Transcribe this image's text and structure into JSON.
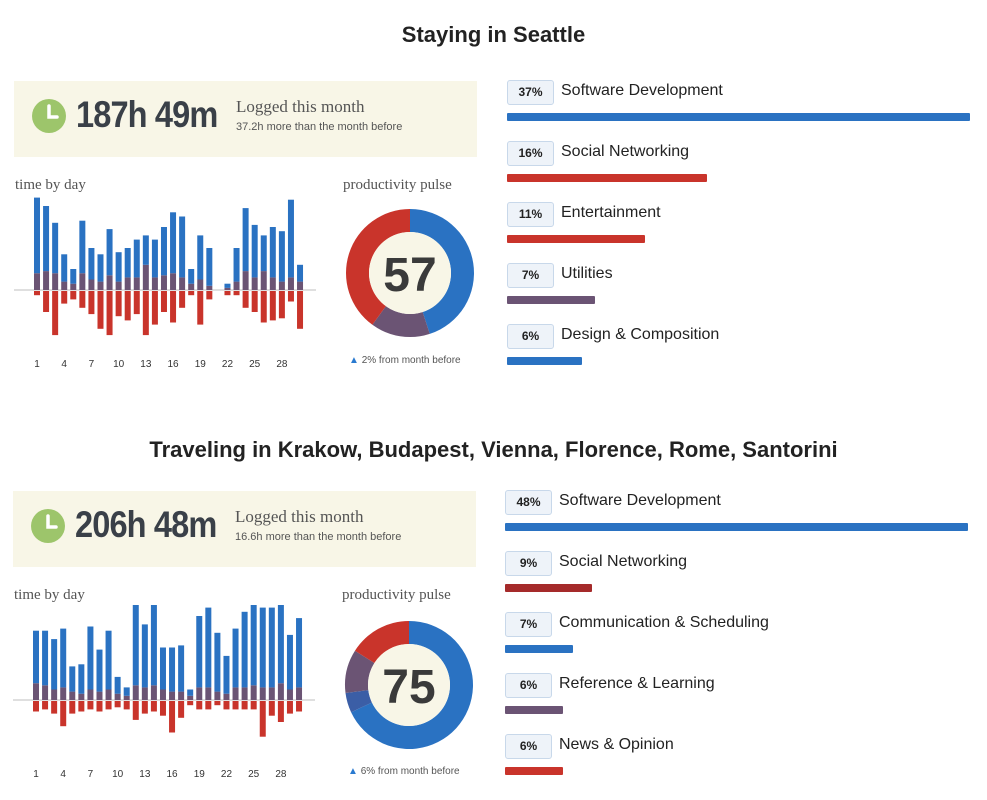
{
  "chart_data": [
    {
      "type": "bar",
      "title": "Staying in Seattle",
      "logged": {
        "hours": "187h 49m",
        "label": "Logged this month",
        "sub": "37.2h more than the month before"
      },
      "time_by_day": {
        "label": "time by day",
        "tick_labels": [
          "1",
          "4",
          "7",
          "10",
          "13",
          "16",
          "19",
          "22",
          "25",
          "28"
        ],
        "days": [
          {
            "blue": 3.6,
            "purple": 0.8,
            "red": 0.2
          },
          {
            "blue": 3.1,
            "purple": 0.9,
            "red": 1.0
          },
          {
            "blue": 2.4,
            "purple": 0.8,
            "red": 2.1
          },
          {
            "blue": 1.3,
            "purple": 0.4,
            "red": 0.6
          },
          {
            "blue": 0.7,
            "purple": 0.3,
            "red": 0.4
          },
          {
            "blue": 2.5,
            "purple": 0.8,
            "red": 0.8
          },
          {
            "blue": 1.5,
            "purple": 0.5,
            "red": 1.1
          },
          {
            "blue": 1.3,
            "purple": 0.4,
            "red": 1.8
          },
          {
            "blue": 2.2,
            "purple": 0.7,
            "red": 2.1
          },
          {
            "blue": 1.4,
            "purple": 0.4,
            "red": 1.2
          },
          {
            "blue": 1.4,
            "purple": 0.6,
            "red": 1.4
          },
          {
            "blue": 1.8,
            "purple": 0.6,
            "red": 1.1
          },
          {
            "blue": 1.4,
            "purple": 1.2,
            "red": 2.1
          },
          {
            "blue": 1.8,
            "purple": 0.6,
            "red": 1.6
          },
          {
            "blue": 2.3,
            "purple": 0.7,
            "red": 1.0
          },
          {
            "blue": 2.9,
            "purple": 0.8,
            "red": 1.5
          },
          {
            "blue": 2.9,
            "purple": 0.6,
            "red": 0.8
          },
          {
            "blue": 0.7,
            "purple": 0.3,
            "red": 0.2
          },
          {
            "blue": 2.1,
            "purple": 0.5,
            "red": 1.6
          },
          {
            "blue": 1.8,
            "purple": 0.2,
            "red": 0.4
          },
          {
            "blue": 0.0,
            "purple": 0.0,
            "red": 0.0
          },
          {
            "blue": 0.2,
            "purple": 0.1,
            "red": 0.2
          },
          {
            "blue": 1.6,
            "purple": 0.4,
            "red": 0.2
          },
          {
            "blue": 3.0,
            "purple": 0.9,
            "red": 0.8
          },
          {
            "blue": 2.5,
            "purple": 0.6,
            "red": 1.0
          },
          {
            "blue": 1.7,
            "purple": 0.9,
            "red": 1.5
          },
          {
            "blue": 2.4,
            "purple": 0.6,
            "red": 1.4
          },
          {
            "blue": 2.4,
            "purple": 0.4,
            "red": 1.3
          },
          {
            "blue": 3.7,
            "purple": 0.6,
            "red": 0.5
          },
          {
            "blue": 0.8,
            "purple": 0.4,
            "red": 1.8
          }
        ]
      },
      "pulse": {
        "label": "productivity pulse",
        "score": "57",
        "delta": "2% from month before",
        "segments": [
          {
            "color": "#2a72c2",
            "value": 45
          },
          {
            "color": "#6b5474",
            "value": 15
          },
          {
            "color": "#c9342b",
            "value": 40
          }
        ]
      },
      "categories": [
        {
          "percent": "37%",
          "label": "Software Development",
          "share": 37,
          "color": "#2a72c2"
        },
        {
          "percent": "16%",
          "label": "Social Networking",
          "share": 16,
          "color": "#c9342b"
        },
        {
          "percent": "11%",
          "label": "Entertainment",
          "share": 11,
          "color": "#c9342b"
        },
        {
          "percent": "7%",
          "label": "Utilities",
          "share": 7,
          "color": "#6b5474"
        },
        {
          "percent": "6%",
          "label": "Design & Composition",
          "share": 6,
          "color": "#2a72c2"
        }
      ]
    },
    {
      "type": "bar",
      "title": "Traveling in Krakow, Budapest, Vienna, Florence, Rome, Santorini",
      "logged": {
        "hours": "206h 48m",
        "label": "Logged this month",
        "sub": "16.6h more than the month before"
      },
      "time_by_day": {
        "label": "time by day",
        "tick_labels": [
          "1",
          "4",
          "7",
          "10",
          "13",
          "16",
          "19",
          "22",
          "25",
          "28"
        ],
        "days": [
          {
            "blue": 2.5,
            "purple": 0.8,
            "red": 0.5
          },
          {
            "blue": 2.6,
            "purple": 0.7,
            "red": 0.4
          },
          {
            "blue": 2.4,
            "purple": 0.5,
            "red": 0.6
          },
          {
            "blue": 2.8,
            "purple": 0.6,
            "red": 1.2
          },
          {
            "blue": 1.2,
            "purple": 0.4,
            "red": 0.6
          },
          {
            "blue": 1.4,
            "purple": 0.3,
            "red": 0.5
          },
          {
            "blue": 3.0,
            "purple": 0.5,
            "red": 0.4
          },
          {
            "blue": 2.0,
            "purple": 0.4,
            "red": 0.5
          },
          {
            "blue": 2.8,
            "purple": 0.5,
            "red": 0.4
          },
          {
            "blue": 0.8,
            "purple": 0.3,
            "red": 0.3
          },
          {
            "blue": 0.4,
            "purple": 0.2,
            "red": 0.4
          },
          {
            "blue": 4.2,
            "purple": 0.7,
            "red": 0.9
          },
          {
            "blue": 3.0,
            "purple": 0.6,
            "red": 0.6
          },
          {
            "blue": 4.2,
            "purple": 0.7,
            "red": 0.5
          },
          {
            "blue": 2.0,
            "purple": 0.5,
            "red": 0.7
          },
          {
            "blue": 2.1,
            "purple": 0.4,
            "red": 1.5
          },
          {
            "blue": 2.2,
            "purple": 0.4,
            "red": 0.8
          },
          {
            "blue": 0.3,
            "purple": 0.2,
            "red": 0.2
          },
          {
            "blue": 3.4,
            "purple": 0.6,
            "red": 0.4
          },
          {
            "blue": 3.8,
            "purple": 0.6,
            "red": 0.4
          },
          {
            "blue": 2.8,
            "purple": 0.4,
            "red": 0.2
          },
          {
            "blue": 1.8,
            "purple": 0.3,
            "red": 0.4
          },
          {
            "blue": 2.8,
            "purple": 0.6,
            "red": 0.4
          },
          {
            "blue": 3.6,
            "purple": 0.6,
            "red": 0.4
          },
          {
            "blue": 4.0,
            "purple": 0.7,
            "red": 0.4
          },
          {
            "blue": 3.8,
            "purple": 0.6,
            "red": 1.7
          },
          {
            "blue": 3.8,
            "purple": 0.6,
            "red": 0.7
          },
          {
            "blue": 4.6,
            "purple": 0.8,
            "red": 1.0
          },
          {
            "blue": 2.6,
            "purple": 0.5,
            "red": 0.6
          },
          {
            "blue": 3.3,
            "purple": 0.6,
            "red": 0.5
          }
        ]
      },
      "pulse": {
        "label": "productivity pulse",
        "score": "75",
        "delta": "6% from month before",
        "segments": [
          {
            "color": "#2a72c2",
            "value": 68
          },
          {
            "color": "#3b5ea6",
            "value": 5
          },
          {
            "color": "#6b5474",
            "value": 11
          },
          {
            "color": "#c9342b",
            "value": 16
          }
        ]
      },
      "categories": [
        {
          "percent": "48%",
          "label": "Software Development",
          "share": 48,
          "color": "#2a72c2"
        },
        {
          "percent": "9%",
          "label": "Social Networking",
          "share": 9,
          "color": "#a52a2a"
        },
        {
          "percent": "7%",
          "label": "Communication & Scheduling",
          "share": 7,
          "color": "#2a72c2"
        },
        {
          "percent": "6%",
          "label": "Reference & Learning",
          "share": 6,
          "color": "#6b5474"
        },
        {
          "percent": "6%",
          "label": "News & Opinion",
          "share": 6,
          "color": "#c9342b"
        }
      ]
    }
  ]
}
